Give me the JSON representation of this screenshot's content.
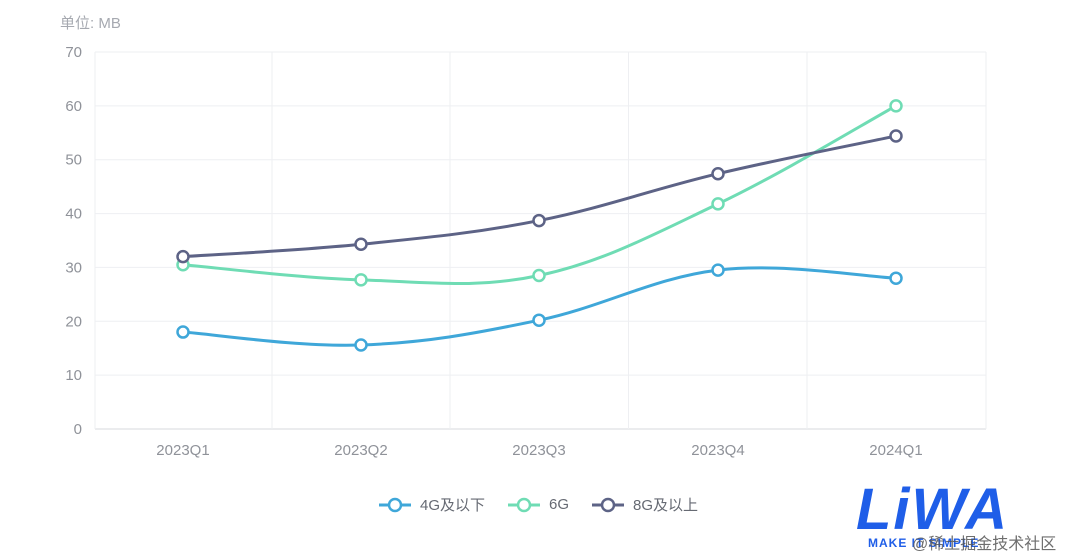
{
  "chart_data": {
    "type": "line",
    "unit_label": "单位: MB",
    "categories": [
      "2023Q1",
      "2023Q2",
      "2023Q3",
      "2023Q4",
      "2024Q1"
    ],
    "yticks": [
      0,
      10,
      20,
      30,
      40,
      50,
      60,
      70
    ],
    "ylim": [
      0,
      70
    ],
    "grid": true,
    "smooth": true,
    "legend_position": "bottom-center",
    "series": [
      {
        "name": "4G及以下",
        "color": "#3fa7d9",
        "values": [
          18,
          15.6,
          20.2,
          29.5,
          28
        ]
      },
      {
        "name": "6G",
        "color": "#6fdcb4",
        "values": [
          30.5,
          27.7,
          28.5,
          41.8,
          60
        ]
      },
      {
        "name": "8G及以上",
        "color": "#5d6386",
        "values": [
          32,
          34.3,
          38.7,
          47.4,
          54.4
        ]
      }
    ]
  },
  "logo": {
    "text": "LiWA",
    "tagline": "MAKE IT SIMPLE",
    "color": "#1f5ee8"
  },
  "watermark": "@稀土掘金技术社区"
}
